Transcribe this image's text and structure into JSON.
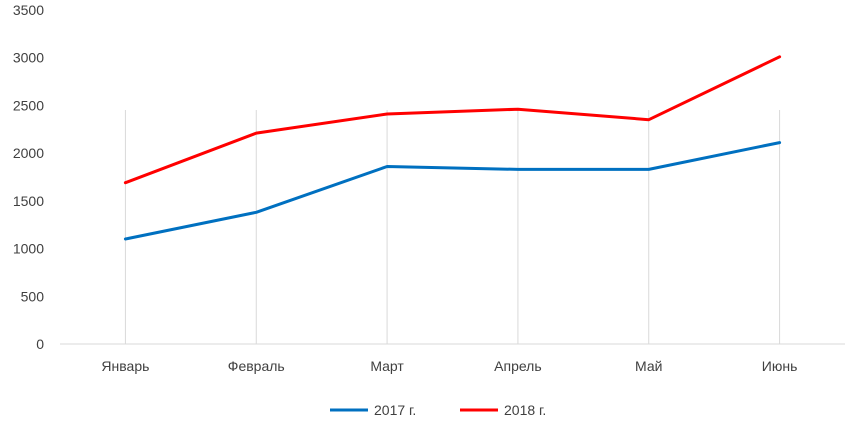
{
  "chart_data": {
    "type": "line",
    "title": "",
    "xlabel": "",
    "ylabel": "",
    "categories": [
      "Январь",
      "Февраль",
      "Март",
      "Апрель",
      "Май",
      "Июнь"
    ],
    "ylim": [
      0,
      3500
    ],
    "yticks": [
      0,
      500,
      1000,
      1500,
      2000,
      2500,
      3000,
      3500
    ],
    "grid": "vertical",
    "legend": "bottom",
    "series": [
      {
        "name": "2017 г.",
        "color": "#0070C0",
        "values": [
          1100,
          1380,
          1860,
          1830,
          1830,
          2110
        ]
      },
      {
        "name": "2018 г.",
        "color": "#FF0000",
        "values": [
          1690,
          2210,
          2410,
          2460,
          2350,
          3010
        ]
      }
    ]
  }
}
